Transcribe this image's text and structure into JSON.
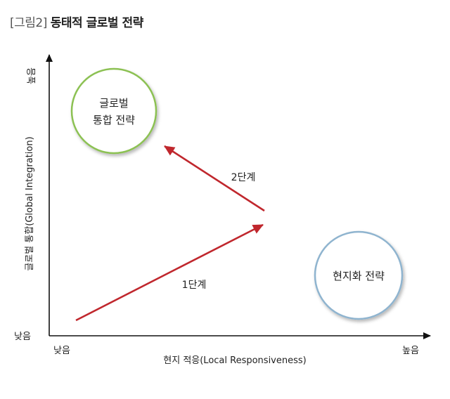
{
  "title": {
    "number": "[그림2]",
    "name": "동태적 글로벌 전략"
  },
  "axes": {
    "y_label": "글로벌 통합(Global Integration)",
    "y_high": "높음",
    "y_low": "낮음",
    "x_label": "현지 적응(Local Responsiveness)",
    "x_low": "낮음",
    "x_high": "높음"
  },
  "nodes": {
    "global": {
      "line1": "글로벌",
      "line2": "통합 전략",
      "border_color": "#8cc152"
    },
    "local": {
      "label": "현지화 전략",
      "border_color": "#8fb4cf"
    }
  },
  "arrows": {
    "stage1": "1단계",
    "stage2": "2단계",
    "color": "#c0272d"
  }
}
